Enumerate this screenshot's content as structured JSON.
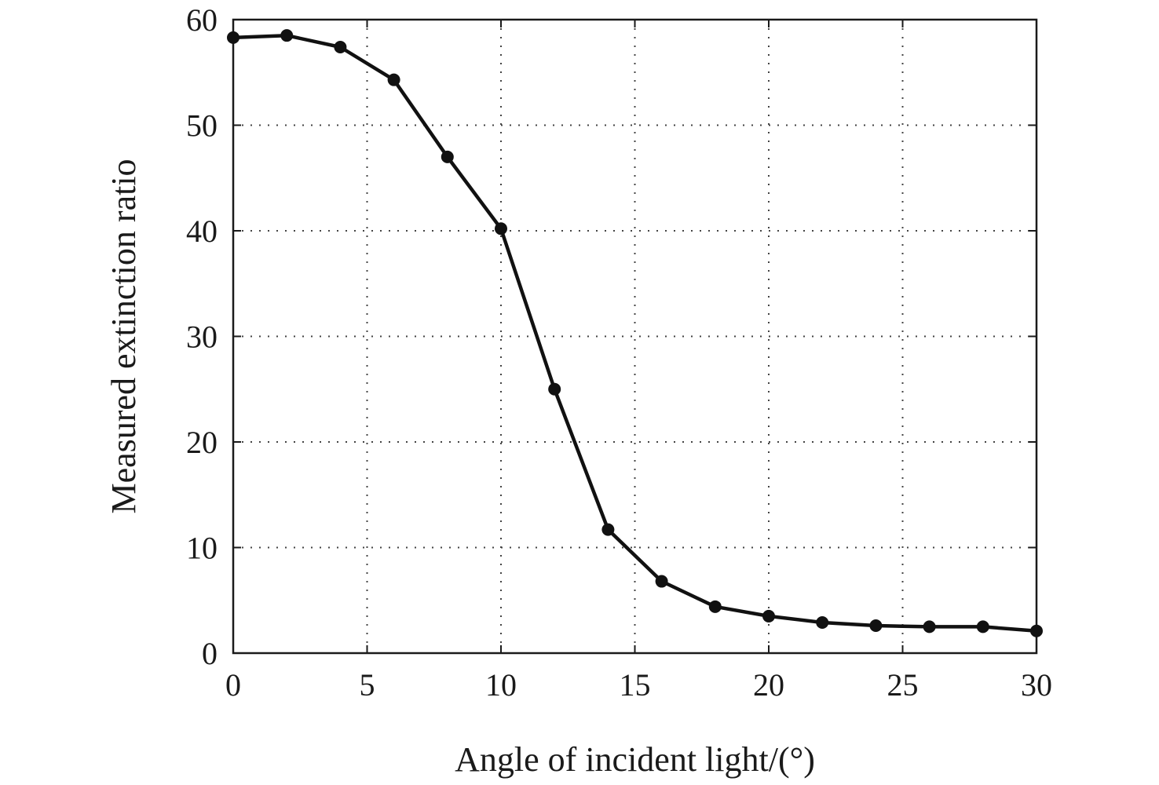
{
  "chart_data": {
    "type": "line",
    "title": "",
    "xlabel": "Angle of incident light/(°)",
    "ylabel": "Measured extinction ratio",
    "xlim": [
      0,
      30
    ],
    "ylim": [
      0,
      60
    ],
    "x_ticks": [
      0,
      5,
      10,
      15,
      20,
      25,
      30
    ],
    "y_ticks": [
      0,
      10,
      20,
      30,
      40,
      50,
      60
    ],
    "grid": true,
    "legend": "none",
    "colors": {
      "series": "#111111",
      "grid": "#444444",
      "frame": "#1a1a1a"
    },
    "series": [
      {
        "marker": "circle",
        "x": [
          0,
          2,
          4,
          6,
          8,
          10,
          12,
          14,
          16,
          18,
          20,
          22,
          24,
          26,
          28,
          30
        ],
        "values": [
          58.3,
          58.5,
          57.4,
          54.3,
          47.0,
          40.2,
          25.0,
          11.7,
          6.8,
          4.4,
          3.5,
          2.9,
          2.6,
          2.5,
          2.5,
          2.1
        ]
      }
    ]
  }
}
